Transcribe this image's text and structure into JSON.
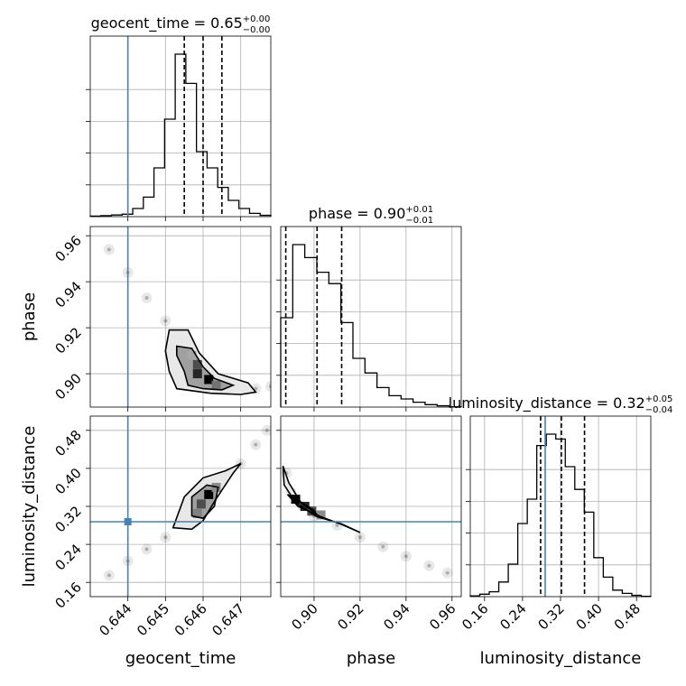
{
  "chart_data": {
    "type": "corner",
    "truth_color": "#4682b4",
    "params": [
      {
        "name": "geocent_time",
        "axis_label": "geocent_time",
        "title": {
          "main": "geocent_time = 0.65",
          "sup": "+0.00",
          "sub": "−0.00"
        },
        "range": [
          0.643,
          0.6478
        ],
        "ticks": [
          0.644,
          0.645,
          0.646,
          0.647
        ],
        "tick_labels": [
          "0.644",
          "0.645",
          "0.646",
          "0.647"
        ],
        "truth": 0.644,
        "quantiles": [
          0.6455,
          0.646,
          0.6465
        ],
        "hist": [
          0.003,
          0.006,
          0.01,
          0.015,
          0.05,
          0.12,
          0.3,
          0.6,
          1.0,
          0.82,
          0.4,
          0.3,
          0.18,
          0.1,
          0.05,
          0.02,
          0.008
        ]
      },
      {
        "name": "phase",
        "axis_label": "phase",
        "title": {
          "main": "phase = 0.90",
          "sup": "+0.01",
          "sub": "−0.01"
        },
        "range": [
          0.8855,
          0.964
        ],
        "ticks": [
          0.9,
          0.92,
          0.94,
          0.96
        ],
        "tick_labels": [
          "0.90",
          "0.92",
          "0.94",
          "0.96"
        ],
        "truth": null,
        "quantiles": [
          0.8877,
          0.9013,
          0.912
        ],
        "hist": [
          0.55,
          1.0,
          0.92,
          0.83,
          0.76,
          0.52,
          0.3,
          0.21,
          0.12,
          0.07,
          0.05,
          0.03,
          0.015,
          0.008,
          0.002
        ]
      },
      {
        "name": "luminosity_distance",
        "axis_label": "luminosity_distance",
        "title": {
          "main": "luminosity_distance = 0.32",
          "sup": "+0.05",
          "sub": "−0.04"
        },
        "range": [
          0.13,
          0.51
        ],
        "ticks": [
          0.16,
          0.24,
          0.32,
          0.4,
          0.48
        ],
        "tick_labels": [
          "0.16",
          "0.24",
          "0.32",
          "0.40",
          "0.48"
        ],
        "truth": 0.2877,
        "quantiles": [
          0.2781,
          0.3218,
          0.3705
        ],
        "hist": [
          0.005,
          0.015,
          0.03,
          0.09,
          0.2,
          0.45,
          0.6,
          0.93,
          1.0,
          0.97,
          0.8,
          0.66,
          0.52,
          0.24,
          0.12,
          0.04,
          0.02,
          0.008,
          0.002
        ]
      }
    ],
    "scatter": [
      {
        "x": "geocent_time",
        "y": "phase",
        "points": [
          [
            0.6462,
            0.9
          ],
          [
            0.646,
            0.901
          ],
          [
            0.6458,
            0.906
          ],
          [
            0.6455,
            0.914
          ],
          [
            0.645,
            0.923
          ],
          [
            0.6445,
            0.933
          ],
          [
            0.644,
            0.944
          ],
          [
            0.6435,
            0.954
          ],
          [
            0.6466,
            0.895
          ],
          [
            0.647,
            0.893
          ],
          [
            0.6474,
            0.8935
          ],
          [
            0.6478,
            0.8945
          ]
        ],
        "contours": [
          [
            [
              0.6456,
              0.895
            ],
            [
              0.6455,
              0.901
            ],
            [
              0.6453,
              0.908
            ],
            [
              0.6453,
              0.912
            ],
            [
              0.6457,
              0.911
            ],
            [
              0.646,
              0.903
            ],
            [
              0.6463,
              0.898
            ],
            [
              0.6468,
              0.895
            ],
            [
              0.6465,
              0.893
            ],
            [
              0.646,
              0.8935
            ]
          ],
          [
            [
              0.6453,
              0.8935
            ],
            [
              0.6451,
              0.901
            ],
            [
              0.645,
              0.91
            ],
            [
              0.6451,
              0.919
            ],
            [
              0.6456,
              0.919
            ],
            [
              0.6459,
              0.909
            ],
            [
              0.6464,
              0.9
            ],
            [
              0.6472,
              0.896
            ],
            [
              0.6474,
              0.892
            ],
            [
              0.647,
              0.891
            ],
            [
              0.6462,
              0.8915
            ]
          ]
        ],
        "density_cells": [
          [
            0.64585,
            0.904,
            0.7
          ],
          [
            0.64585,
            0.9,
            0.85
          ],
          [
            0.64615,
            0.8975,
            1.0
          ],
          [
            0.64635,
            0.895,
            0.55
          ],
          [
            0.6457,
            0.908,
            0.35
          ]
        ]
      },
      {
        "x": "geocent_time",
        "y": "luminosity_distance",
        "points": [
          [
            0.646,
            0.33
          ],
          [
            0.6455,
            0.29
          ],
          [
            0.645,
            0.255
          ],
          [
            0.6445,
            0.23
          ],
          [
            0.644,
            0.205
          ],
          [
            0.6435,
            0.175
          ],
          [
            0.6465,
            0.37
          ],
          [
            0.647,
            0.41
          ],
          [
            0.6474,
            0.45
          ],
          [
            0.6477,
            0.48
          ]
        ],
        "contours": [
          [
            [
              0.6457,
              0.3
            ],
            [
              0.6457,
              0.34
            ],
            [
              0.6461,
              0.365
            ],
            [
              0.6464,
              0.36
            ],
            [
              0.6463,
              0.32
            ],
            [
              0.646,
              0.295
            ]
          ],
          [
            [
              0.6452,
              0.275
            ],
            [
              0.6455,
              0.34
            ],
            [
              0.646,
              0.38
            ],
            [
              0.6466,
              0.395
            ],
            [
              0.647,
              0.41
            ],
            [
              0.6468,
              0.39
            ],
            [
              0.6463,
              0.33
            ],
            [
              0.646,
              0.29
            ],
            [
              0.6457,
              0.272
            ]
          ]
        ],
        "density_cells": [
          [
            0.64615,
            0.345,
            1.0
          ],
          [
            0.64595,
            0.325,
            0.7
          ],
          [
            0.64585,
            0.305,
            0.5
          ],
          [
            0.64635,
            0.36,
            0.45
          ]
        ]
      },
      {
        "x": "phase",
        "y": "luminosity_distance",
        "points": [
          [
            0.888,
            0.39
          ],
          [
            0.89,
            0.35
          ],
          [
            0.895,
            0.32
          ],
          [
            0.9,
            0.3
          ],
          [
            0.91,
            0.28
          ],
          [
            0.92,
            0.255
          ],
          [
            0.93,
            0.235
          ],
          [
            0.94,
            0.215
          ],
          [
            0.95,
            0.195
          ],
          [
            0.958,
            0.18
          ]
        ],
        "contours": [
          [
            [
              0.8885,
              0.345
            ],
            [
              0.893,
              0.32
            ],
            [
              0.901,
              0.303
            ],
            [
              0.9,
              0.312
            ],
            [
              0.893,
              0.332
            ]
          ],
          [
            [
              0.8865,
              0.405
            ],
            [
              0.887,
              0.365
            ],
            [
              0.892,
              0.328
            ],
            [
              0.901,
              0.299
            ],
            [
              0.912,
              0.283
            ],
            [
              0.92,
              0.265
            ],
            [
              0.912,
              0.282
            ],
            [
              0.902,
              0.3
            ],
            [
              0.894,
              0.33
            ],
            [
              0.889,
              0.37
            ]
          ]
        ],
        "density_cells": [
          [
            0.892,
            0.335,
            1.0
          ],
          [
            0.896,
            0.32,
            0.85
          ],
          [
            0.899,
            0.31,
            0.7
          ],
          [
            0.903,
            0.302,
            0.45
          ]
        ]
      }
    ]
  }
}
